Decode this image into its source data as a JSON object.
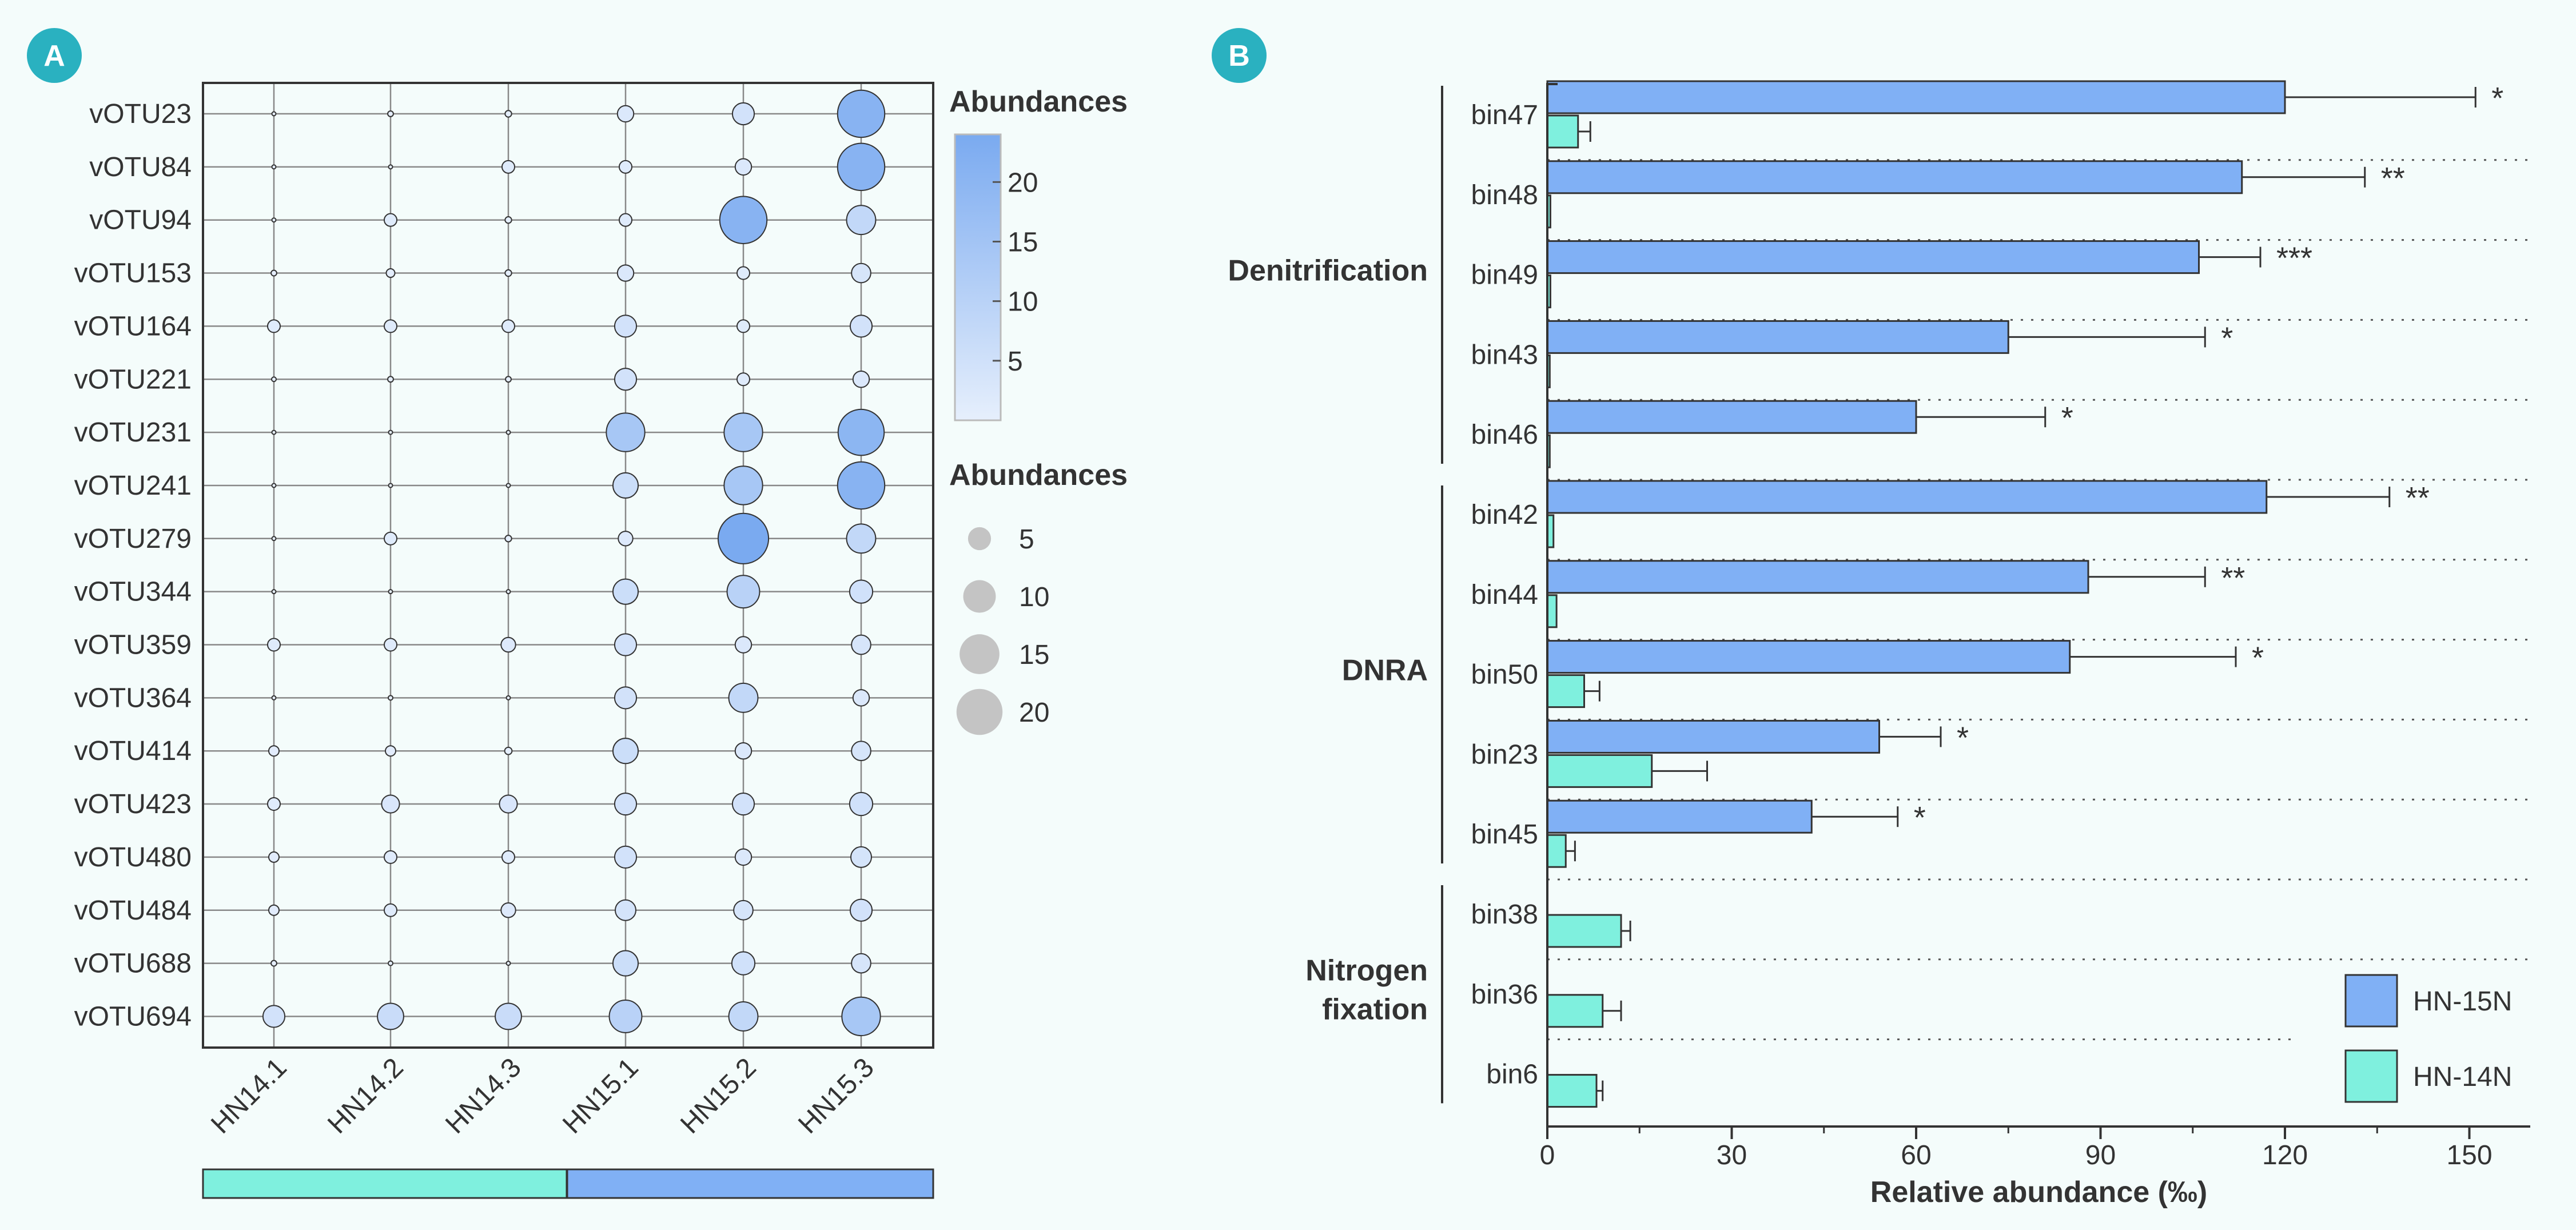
{
  "chart_data": [
    {
      "type": "scatter",
      "panel": "A",
      "rows": [
        "vOTU23",
        "vOTU84",
        "vOTU94",
        "vOTU153",
        "vOTU164",
        "vOTU221",
        "vOTU231",
        "vOTU241",
        "vOTU279",
        "vOTU344",
        "vOTU359",
        "vOTU364",
        "vOTU414",
        "vOTU423",
        "vOTU480",
        "vOTU484",
        "vOTU688",
        "vOTU694"
      ],
      "columns": [
        "HN14.1",
        "HN14.2",
        "HN14.3",
        "HN15.1",
        "HN15.2",
        "HN15.3"
      ],
      "values": [
        [
          0.1,
          0.3,
          0.4,
          2.5,
          4.5,
          21
        ],
        [
          0.05,
          0.1,
          1.5,
          1.5,
          2.5,
          21
        ],
        [
          0.1,
          1.5,
          0.4,
          1.5,
          21,
          8
        ],
        [
          0.3,
          0.7,
          0.4,
          2.5,
          1.5,
          3.5
        ],
        [
          1.5,
          1.5,
          1.5,
          4.5,
          1.5,
          4.5
        ],
        [
          0.2,
          0.3,
          0.3,
          4.5,
          1.5,
          2.5
        ],
        [
          0.05,
          0.1,
          0.1,
          14,
          14,
          20
        ],
        [
          0.05,
          0.1,
          0.1,
          6,
          14,
          21
        ],
        [
          0.05,
          1.5,
          0.4,
          2,
          24,
          8
        ],
        [
          0.03,
          0.05,
          0.05,
          6,
          10,
          5
        ],
        [
          1.5,
          1.5,
          2,
          4.5,
          2.5,
          3.5
        ],
        [
          0.03,
          0.2,
          0.05,
          4.5,
          8,
          2.5
        ],
        [
          1,
          1,
          0.5,
          6,
          2.5,
          3.5
        ],
        [
          1.5,
          3,
          3,
          4.5,
          4.5,
          5
        ],
        [
          1,
          1.5,
          1.5,
          4.5,
          2.5,
          4
        ],
        [
          1,
          1.5,
          2,
          4,
          3.5,
          4.5
        ],
        [
          0.3,
          0.2,
          0.05,
          6,
          5,
          3.5
        ],
        [
          4.5,
          6.5,
          6.5,
          10,
          8,
          14
        ]
      ],
      "groups": [
        {
          "name": "",
          "columns": [
            "HN14.1",
            "HN14.2",
            "HN14.3"
          ],
          "color": "#7ff0de"
        },
        {
          "name": "",
          "columns": [
            "HN15.1",
            "HN15.2",
            "HN15.3"
          ],
          "color": "#80b0f5"
        }
      ],
      "legend_color": {
        "title": "Abundances",
        "ticks": [
          5,
          10,
          15,
          20
        ],
        "range": [
          0,
          24
        ],
        "color_low": "#e6effc",
        "color_high": "#7aaaf0"
      },
      "legend_size": {
        "title": "Abundances",
        "values": [
          5,
          10,
          15,
          20
        ],
        "color": "#c4c4c4"
      }
    },
    {
      "type": "bar",
      "panel": "B",
      "orientation": "horizontal",
      "groups": [
        {
          "label": "Denitrification",
          "categories": [
            "bin47",
            "bin48",
            "bin49",
            "bin43",
            "bin46"
          ]
        },
        {
          "label": "DNRA",
          "categories": [
            "bin42",
            "bin44",
            "bin50",
            "bin23",
            "bin45"
          ]
        },
        {
          "label": "Nitrogen\nfixation",
          "categories": [
            "bin38",
            "bin36",
            "bin6"
          ]
        }
      ],
      "categories": [
        "bin47",
        "bin48",
        "bin49",
        "bin43",
        "bin46",
        "bin42",
        "bin44",
        "bin50",
        "bin23",
        "bin45",
        "bin38",
        "bin36",
        "bin6"
      ],
      "series": [
        {
          "name": "HN-15N",
          "color": "#80b0f5",
          "values": [
            120,
            113,
            106,
            75,
            60,
            117,
            88,
            85,
            54,
            43,
            0,
            0,
            0
          ],
          "errors": [
            31,
            20,
            10,
            32,
            21,
            20,
            19,
            27,
            10,
            14,
            0,
            0,
            0
          ]
        },
        {
          "name": "HN-14N",
          "color": "#7ff0de",
          "values": [
            5,
            0.5,
            0.5,
            0.4,
            0.4,
            1,
            1.5,
            6,
            17,
            3,
            12,
            9,
            8
          ],
          "errors": [
            2,
            0.5,
            0.5,
            0.3,
            0.3,
            0.5,
            0.5,
            2.5,
            9,
            1.5,
            1.5,
            3,
            1
          ]
        }
      ],
      "significance": [
        "*",
        "**",
        "***",
        "*",
        "*",
        "**",
        "**",
        "*",
        "*",
        "*",
        "",
        "",
        ""
      ],
      "xlabel": "Relative abundance (‰)",
      "xlim": [
        0,
        160
      ],
      "xticks": [
        0,
        30,
        60,
        90,
        120,
        150
      ],
      "legend": {
        "position": "bottom-right"
      }
    }
  ],
  "panel_labels": {
    "a": "A",
    "b": "B"
  },
  "colors": {
    "badge": "#2ab1c0",
    "grid": "#888888",
    "axis": "#333333"
  }
}
